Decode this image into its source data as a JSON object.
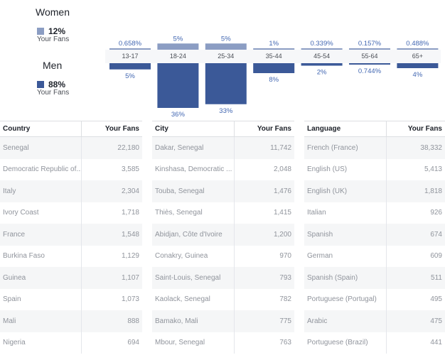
{
  "legend": {
    "women_label": "Women",
    "women_pct": "12%",
    "women_sub": "Your Fans",
    "men_label": "Men",
    "men_pct": "88%",
    "men_sub": "Your Fans"
  },
  "colors": {
    "women": "#8b9dc3",
    "men": "#3b5998",
    "value_text": "#4267b2"
  },
  "chart_data": {
    "type": "bar",
    "categories": [
      "13-17",
      "18-24",
      "25-34",
      "35-44",
      "45-54",
      "55-64",
      "65+"
    ],
    "series": [
      {
        "name": "Women",
        "values": [
          0.658,
          5,
          5,
          1,
          0.339,
          0.157,
          0.488
        ],
        "labels": [
          "0.658%",
          "5%",
          "5%",
          "1%",
          "0.339%",
          "0.157%",
          "0.488%"
        ]
      },
      {
        "name": "Men",
        "values": [
          5,
          36,
          33,
          8,
          2,
          0.744,
          4
        ],
        "labels": [
          "5%",
          "36%",
          "33%",
          "8%",
          "2%",
          "0.744%",
          "4%"
        ]
      }
    ],
    "ylabel": "",
    "xlabel": ""
  },
  "tables": [
    {
      "col1": "Country",
      "col2": "Your Fans",
      "rows": [
        [
          "Senegal",
          "22,180"
        ],
        [
          "Democratic Republic of...",
          "3,585"
        ],
        [
          "Italy",
          "2,304"
        ],
        [
          "Ivory Coast",
          "1,718"
        ],
        [
          "France",
          "1,548"
        ],
        [
          "Burkina Faso",
          "1,129"
        ],
        [
          "Guinea",
          "1,107"
        ],
        [
          "Spain",
          "1,073"
        ],
        [
          "Mali",
          "888"
        ],
        [
          "Nigeria",
          "694"
        ]
      ]
    },
    {
      "col1": "City",
      "col2": "Your Fans",
      "rows": [
        [
          "Dakar, Senegal",
          "11,742"
        ],
        [
          "Kinshasa, Democratic ...",
          "2,048"
        ],
        [
          "Touba, Senegal",
          "1,476"
        ],
        [
          "Thiès, Senegal",
          "1,415"
        ],
        [
          "Abidjan, Côte d'Ivoire",
          "1,200"
        ],
        [
          "Conakry, Guinea",
          "970"
        ],
        [
          "Saint-Louis, Senegal",
          "793"
        ],
        [
          "Kaolack, Senegal",
          "782"
        ],
        [
          "Bamako, Mali",
          "775"
        ],
        [
          "Mbour, Senegal",
          "763"
        ]
      ]
    },
    {
      "col1": "Language",
      "col2": "Your Fans",
      "rows": [
        [
          "French (France)",
          "38,332"
        ],
        [
          "English (US)",
          "5,413"
        ],
        [
          "English (UK)",
          "1,818"
        ],
        [
          "Italian",
          "926"
        ],
        [
          "Spanish",
          "674"
        ],
        [
          "German",
          "609"
        ],
        [
          "Spanish (Spain)",
          "511"
        ],
        [
          "Portuguese (Portugal)",
          "495"
        ],
        [
          "Arabic",
          "475"
        ],
        [
          "Portuguese (Brazil)",
          "441"
        ]
      ]
    }
  ]
}
